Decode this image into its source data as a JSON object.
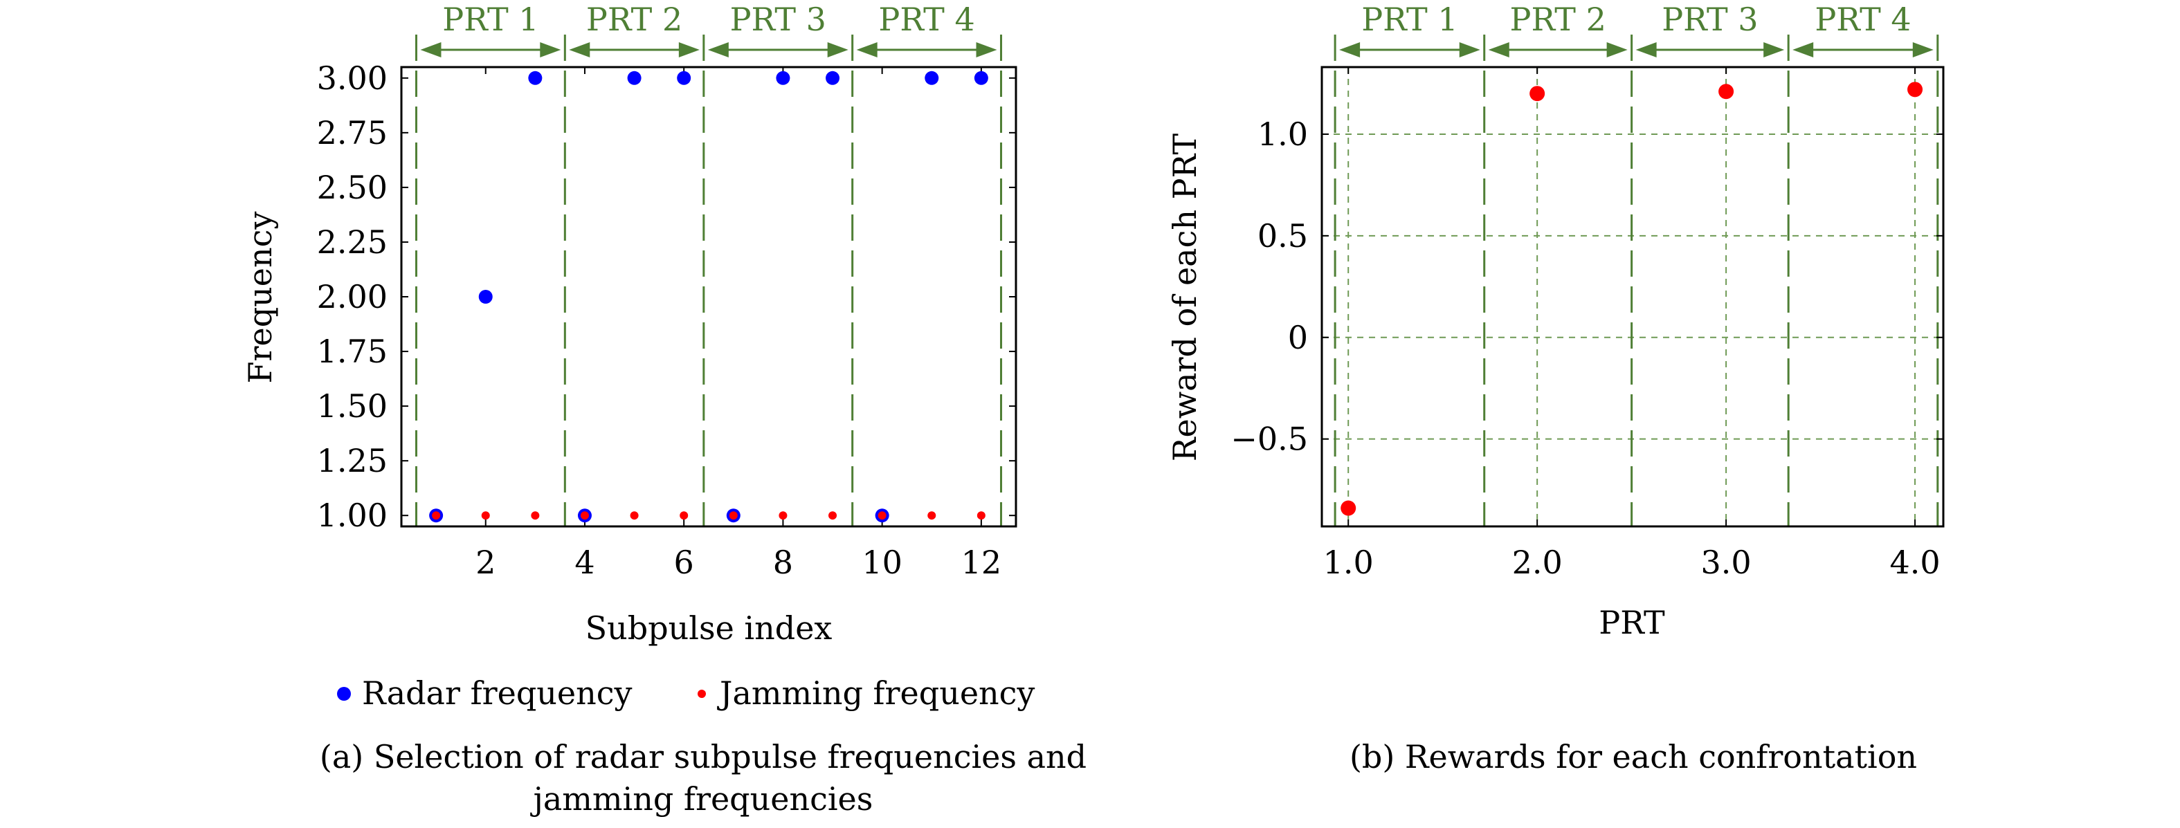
{
  "colors": {
    "radar": "#0000ff",
    "jamming": "#ff0000",
    "prt_green": "#4f7f35",
    "grid_green": "#6f9a55",
    "axis": "#000000"
  },
  "chart_data": [
    {
      "type": "scatter",
      "caption_line1": "(a) Selection of radar subpulse frequencies and",
      "caption_line2": "jamming frequencies",
      "xlabel": "Subpulse index",
      "ylabel": "Frequency",
      "xlim": [
        0.3,
        12.7
      ],
      "ylim": [
        0.95,
        3.05
      ],
      "xticks": [
        2,
        4,
        6,
        8,
        10,
        12
      ],
      "xtick_labels": [
        "2",
        "4",
        "6",
        "8",
        "10",
        "12"
      ],
      "yticks": [
        1.0,
        1.25,
        1.5,
        1.75,
        2.0,
        2.25,
        2.5,
        2.75,
        3.0
      ],
      "ytick_labels": [
        "1.00",
        "1.25",
        "1.50",
        "1.75",
        "2.00",
        "2.25",
        "2.50",
        "2.75",
        "3.00"
      ],
      "grid": false,
      "prt_boundaries": [
        0.6,
        3.6,
        6.4,
        9.4,
        12.4
      ],
      "prt_labels": [
        "PRT 1",
        "PRT 2",
        "PRT 3",
        "PRT 4"
      ],
      "legend_position": "bottom",
      "series": [
        {
          "name": "Radar frequency",
          "x": [
            1,
            2,
            3,
            4,
            5,
            6,
            7,
            8,
            9,
            10,
            11,
            12
          ],
          "y": [
            1,
            2,
            3,
            1,
            3,
            3,
            1,
            3,
            3,
            1,
            3,
            3
          ]
        },
        {
          "name": "Jamming frequency",
          "x": [
            1,
            2,
            3,
            4,
            5,
            6,
            7,
            8,
            9,
            10,
            11,
            12
          ],
          "y": [
            1,
            1,
            1,
            1,
            1,
            1,
            1,
            1,
            1,
            1,
            1,
            1
          ]
        }
      ]
    },
    {
      "type": "scatter",
      "caption_line1": "(b) Rewards for each confrontation",
      "xlabel": "PRT",
      "ylabel": "Reward of each PRT",
      "xlim": [
        0.86,
        4.15
      ],
      "ylim": [
        -0.93,
        1.33
      ],
      "xticks": [
        1.0,
        2.0,
        3.0,
        4.0
      ],
      "xtick_labels": [
        "1.0",
        "2.0",
        "3.0",
        "4.0"
      ],
      "yticks": [
        -0.5,
        0,
        0.5,
        1.0
      ],
      "ytick_labels": [
        "−0.5",
        "0",
        "0.5",
        "1.0"
      ],
      "grid": true,
      "prt_boundaries": [
        0.93,
        1.72,
        2.5,
        3.33,
        4.12
      ],
      "prt_labels": [
        "PRT 1",
        "PRT 2",
        "PRT 3",
        "PRT 4"
      ],
      "series": [
        {
          "x": [
            1.0,
            2.0,
            3.0,
            4.0
          ],
          "y": [
            -0.84,
            1.2,
            1.21,
            1.22
          ]
        }
      ]
    }
  ]
}
